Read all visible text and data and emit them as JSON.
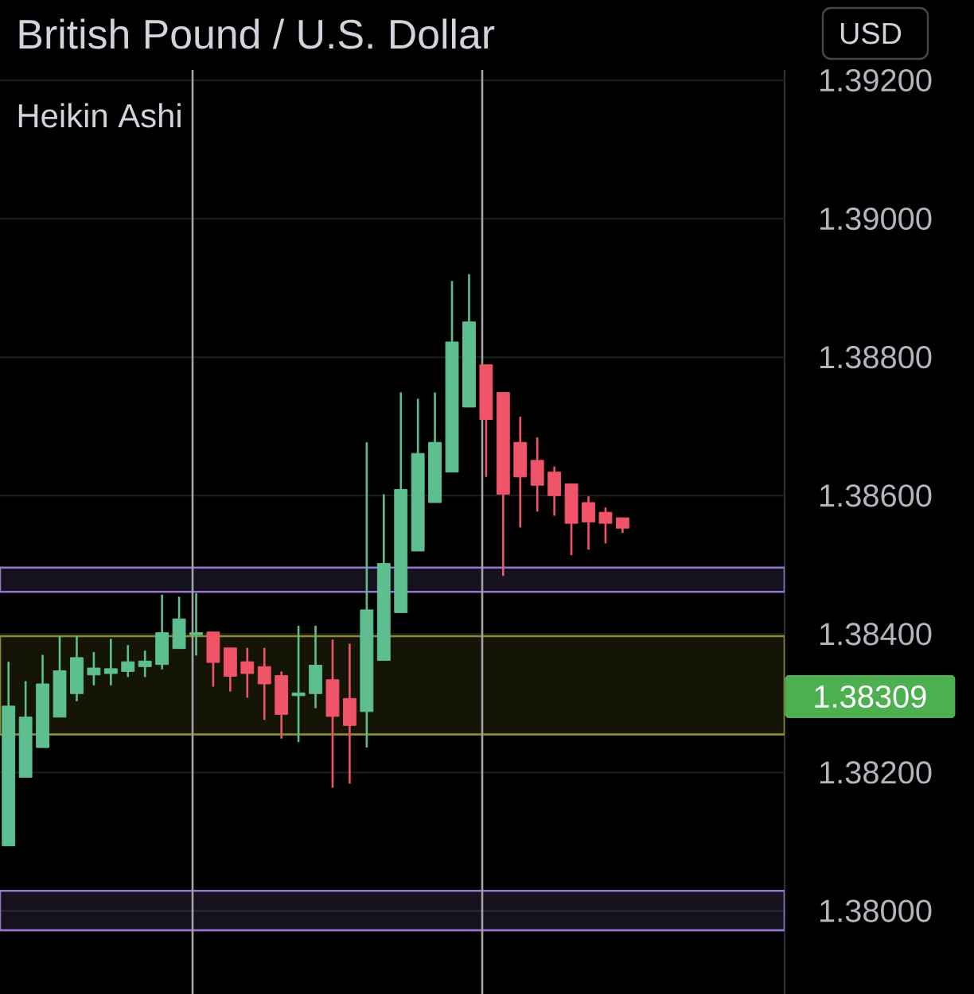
{
  "chart_data": {
    "type": "candlestick",
    "title": "British Pound / U.S. Dollar",
    "subtitle": "Heikin Ashi",
    "annotations": [
      "USD",
      "1.38309"
    ],
    "categories": [
      null,
      null,
      null,
      null,
      null,
      null,
      null,
      null,
      null,
      null,
      null,
      null,
      null,
      null,
      null,
      null,
      null,
      null,
      null,
      null,
      null,
      null,
      null,
      null,
      null,
      null,
      null,
      null,
      null,
      null,
      null,
      null,
      null,
      null,
      null,
      null,
      null,
      null,
      null,
      null,
      null,
      null,
      null,
      null,
      null,
      null
    ],
    "ohlc": [
      [
        1.38094,
        1.3836,
        1.38094,
        1.38296
      ],
      [
        1.38193,
        1.38332,
        1.38193,
        1.3828
      ],
      [
        1.38236,
        1.3837,
        1.38236,
        1.38328
      ],
      [
        1.3828,
        1.38397,
        1.3828,
        1.38347
      ],
      [
        1.38314,
        1.38397,
        1.38303,
        1.38366
      ],
      [
        1.38341,
        1.38374,
        1.38326,
        1.38351
      ],
      [
        1.38343,
        1.38393,
        1.38326,
        1.3835
      ],
      [
        1.38346,
        1.38384,
        1.38338,
        1.3836
      ],
      [
        1.38353,
        1.38376,
        1.38338,
        1.38361
      ],
      [
        1.38356,
        1.38457,
        1.38349,
        1.38402
      ],
      [
        1.38379,
        1.38454,
        1.38379,
        1.38422
      ],
      [
        1.38399,
        1.38459,
        1.38369,
        1.38402
      ],
      [
        1.38403,
        1.38403,
        1.38324,
        1.38359
      ],
      [
        1.3838,
        1.3838,
        1.38317,
        1.38339
      ],
      [
        1.3836,
        1.3838,
        1.38308,
        1.38343
      ],
      [
        1.38353,
        1.3838,
        1.38276,
        1.38328
      ],
      [
        1.3834,
        1.38346,
        1.38249,
        1.38284
      ],
      [
        1.38311,
        1.38412,
        1.38244,
        1.38315
      ],
      [
        1.38314,
        1.38412,
        1.38293,
        1.38355
      ],
      [
        1.38334,
        1.38392,
        1.38178,
        1.38281
      ],
      [
        1.38307,
        1.38386,
        1.38184,
        1.38268
      ],
      [
        1.38288,
        1.38677,
        1.38236,
        1.38435
      ],
      [
        1.38362,
        1.38602,
        1.38362,
        1.38502
      ],
      [
        1.38431,
        1.38749,
        1.38431,
        1.38609
      ],
      [
        1.3852,
        1.3874,
        1.3852,
        1.38661
      ],
      [
        1.3859,
        1.38749,
        1.3859,
        1.38677
      ],
      [
        1.38634,
        1.3891,
        1.38634,
        1.38822
      ],
      [
        1.38728,
        1.3892,
        1.38728,
        1.38851
      ],
      [
        1.38789,
        1.38789,
        1.38627,
        1.3871
      ],
      [
        1.38749,
        1.38749,
        1.38484,
        1.38602
      ],
      [
        1.38677,
        1.38714,
        1.38554,
        1.38627
      ],
      [
        1.38651,
        1.38684,
        1.38577,
        1.38615
      ],
      [
        1.38634,
        1.38642,
        1.38571,
        1.386
      ],
      [
        1.38617,
        1.38617,
        1.38514,
        1.3856
      ],
      [
        1.3859,
        1.38599,
        1.38522,
        1.38562
      ],
      [
        1.38576,
        1.38583,
        1.38531,
        1.3856
      ],
      [
        1.38568,
        1.38568,
        1.38546,
        1.38553
      ],
      null,
      null,
      null,
      null,
      null,
      null,
      null,
      null,
      null
    ],
    "colors": [
      "#5dbf90",
      "#5dbf90",
      "#5dbf90",
      "#5dbf90",
      "#5dbf90",
      "#5dbf90",
      "#5dbf90",
      "#5dbf90",
      "#5dbf90",
      "#5dbf90",
      "#5dbf90",
      "#5dbf90",
      "#ef5468",
      "#ef5468",
      "#ef5468",
      "#ef5468",
      "#ef5468",
      "#5dbf90",
      "#5dbf90",
      "#ef5468",
      "#ef5468",
      "#5dbf90",
      "#5dbf90",
      "#5dbf90",
      "#5dbf90",
      "#5dbf90",
      "#5dbf90",
      "#5dbf90",
      "#ef5468",
      "#ef5468",
      "#ef5468",
      "#ef5468",
      "#ef5468",
      "#ef5468",
      "#ef5468",
      "#ef5468",
      "#ef5468",
      null,
      null,
      null,
      null,
      null,
      null,
      null,
      null,
      null
    ],
    "ylim": [
      1.3788,
      1.39215
    ],
    "yticks": [
      {
        "value": 1.38,
        "label": "1.38000"
      },
      {
        "value": 1.382,
        "label": "1.38200"
      },
      {
        "value": 1.384,
        "label": "1.38400"
      },
      {
        "value": 1.386,
        "label": "1.38600"
      },
      {
        "value": 1.388,
        "label": "1.38800"
      },
      {
        "value": 1.39,
        "label": "1.39000"
      },
      {
        "value": 1.392,
        "label": "1.39200"
      }
    ],
    "grid": "y",
    "tick_labels": "y",
    "bands": [
      {
        "axis": "y",
        "from": 1.38461,
        "to": 1.38496,
        "color": "#9575cd"
      },
      {
        "axis": "y",
        "from": 1.38255,
        "to": 1.38397,
        "color": "#8f8a2e"
      },
      {
        "axis": "y",
        "from": 1.37972,
        "to": 1.38029,
        "color": "#9575cd"
      }
    ]
  }
}
